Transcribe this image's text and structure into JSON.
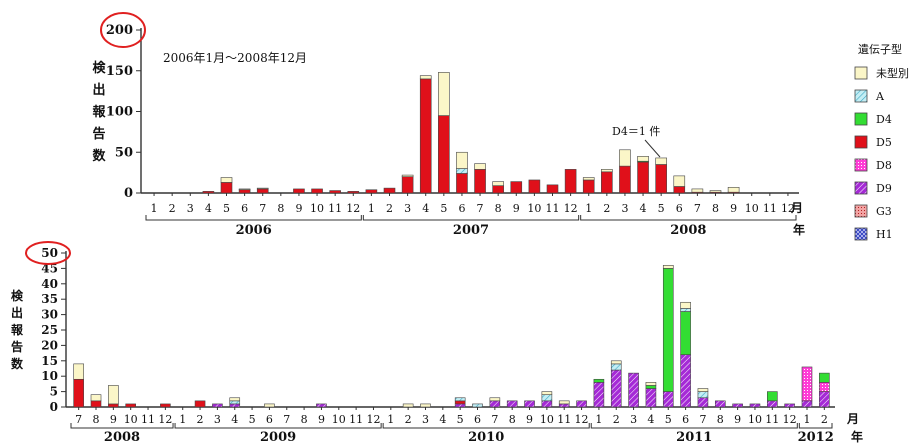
{
  "chart_data": [
    {
      "type": "bar",
      "stacked": true,
      "title": "",
      "annotation_text": "2006年1月～2008年12月",
      "callout_text": "D4＝1 件",
      "ylabel": "検出報告数",
      "xlabel": "月",
      "year_unit_label": "年",
      "ylim": [
        0,
        200
      ],
      "yticks": [
        "0",
        "50",
        "100",
        "150",
        "200"
      ],
      "grid": false,
      "legend_title": "遺伝子型",
      "legend_position": "right",
      "years": [
        {
          "label": "2006",
          "months": 12
        },
        {
          "label": "2007",
          "months": 12
        },
        {
          "label": "2008",
          "months": 12
        }
      ],
      "categories": [
        "1",
        "2",
        "3",
        "4",
        "5",
        "6",
        "7",
        "8",
        "9",
        "10",
        "11",
        "12",
        "1",
        "2",
        "3",
        "4",
        "5",
        "6",
        "7",
        "8",
        "9",
        "10",
        "11",
        "12",
        "1",
        "2",
        "3",
        "4",
        "5",
        "6",
        "7",
        "8",
        "9",
        "10",
        "11",
        "12"
      ],
      "series": [
        {
          "name": "未型別",
          "values": [
            0,
            0,
            0,
            0,
            6,
            1,
            1,
            0,
            0,
            0,
            0,
            0,
            0,
            0,
            2,
            4,
            53,
            20,
            7,
            5,
            0,
            0,
            0,
            0,
            3,
            3,
            20,
            6,
            8,
            13,
            4,
            2,
            6,
            0,
            0,
            0
          ]
        },
        {
          "name": "A",
          "values": [
            0,
            0,
            0,
            0,
            0,
            0,
            0,
            0,
            0,
            0,
            0,
            0,
            0,
            0,
            0,
            0,
            0,
            6,
            0,
            0,
            0,
            0,
            0,
            0,
            0,
            0,
            0,
            0,
            0,
            0,
            0,
            0,
            0,
            0,
            0,
            0
          ]
        },
        {
          "name": "D4",
          "values": [
            0,
            0,
            0,
            0,
            0,
            0,
            0,
            0,
            0,
            0,
            0,
            0,
            0,
            0,
            0,
            0,
            0,
            0,
            0,
            0,
            0,
            0,
            0,
            0,
            0,
            0,
            0,
            1,
            0,
            0,
            0,
            0,
            0,
            0,
            0,
            0
          ]
        },
        {
          "name": "D5",
          "values": [
            0,
            0,
            0,
            2,
            13,
            4,
            5,
            0,
            5,
            5,
            3,
            2,
            4,
            6,
            20,
            140,
            95,
            24,
            29,
            9,
            14,
            16,
            10,
            29,
            16,
            26,
            33,
            38,
            35,
            8,
            1,
            1,
            1,
            0,
            0,
            0
          ]
        },
        {
          "name": "D8",
          "values": [
            0,
            0,
            0,
            0,
            0,
            0,
            0,
            0,
            0,
            0,
            0,
            0,
            0,
            0,
            0,
            0,
            0,
            0,
            0,
            0,
            0,
            0,
            0,
            0,
            0,
            0,
            0,
            0,
            0,
            0,
            0,
            0,
            0,
            0,
            0,
            0
          ]
        },
        {
          "name": "D9",
          "values": [
            0,
            0,
            0,
            0,
            0,
            0,
            0,
            0,
            0,
            0,
            0,
            0,
            0,
            0,
            0,
            0,
            0,
            0,
            0,
            0,
            0,
            0,
            0,
            0,
            0,
            0,
            0,
            0,
            0,
            0,
            0,
            0,
            0,
            0,
            0,
            0
          ]
        },
        {
          "name": "G3",
          "values": [
            0,
            0,
            0,
            0,
            0,
            0,
            0,
            0,
            0,
            0,
            0,
            0,
            0,
            0,
            0,
            0,
            0,
            0,
            0,
            0,
            0,
            0,
            0,
            0,
            0,
            0,
            0,
            0,
            0,
            0,
            0,
            0,
            0,
            0,
            0,
            0
          ]
        },
        {
          "name": "H1",
          "values": [
            0,
            0,
            0,
            0,
            0,
            0,
            0,
            0,
            0,
            0,
            0,
            0,
            0,
            0,
            0,
            0,
            0,
            0,
            0,
            0,
            0,
            0,
            0,
            0,
            0,
            0,
            0,
            0,
            0,
            0,
            0,
            0,
            0,
            0,
            0,
            0
          ]
        }
      ]
    },
    {
      "type": "bar",
      "stacked": true,
      "title": "",
      "ylabel": "検出報告数",
      "xlabel": "月",
      "year_unit_label": "年",
      "ylim": [
        0,
        50
      ],
      "yticks": [
        "0",
        "5",
        "10",
        "15",
        "20",
        "25",
        "30",
        "35",
        "40",
        "45",
        "50"
      ],
      "grid": false,
      "years": [
        {
          "label": "2008",
          "months": 6
        },
        {
          "label": "2009",
          "months": 12
        },
        {
          "label": "2010",
          "months": 12
        },
        {
          "label": "2011",
          "months": 12
        },
        {
          "label": "2012",
          "months": 2
        }
      ],
      "categories": [
        "7",
        "8",
        "9",
        "10",
        "11",
        "12",
        "1",
        "2",
        "3",
        "4",
        "5",
        "6",
        "7",
        "8",
        "9",
        "10",
        "11",
        "12",
        "1",
        "2",
        "3",
        "4",
        "5",
        "6",
        "7",
        "8",
        "9",
        "10",
        "11",
        "12",
        "1",
        "2",
        "3",
        "4",
        "5",
        "6",
        "7",
        "8",
        "9",
        "10",
        "11",
        "12",
        "1",
        "2"
      ],
      "series": [
        {
          "name": "未型別",
          "values": [
            5,
            2,
            6,
            0,
            0,
            0,
            0,
            0,
            0,
            1,
            0,
            1,
            0,
            0,
            0,
            0,
            0,
            0,
            0,
            1,
            1,
            0,
            0,
            0,
            1,
            0,
            0,
            1,
            1,
            0,
            0,
            1,
            0,
            1,
            1,
            2,
            1,
            0,
            0,
            0,
            0,
            0,
            0,
            0
          ]
        },
        {
          "name": "A",
          "values": [
            0,
            0,
            0,
            0,
            0,
            0,
            0,
            0,
            0,
            1,
            0,
            0,
            0,
            0,
            0,
            0,
            0,
            0,
            0,
            0,
            0,
            0,
            1,
            1,
            0,
            0,
            0,
            2,
            0,
            0,
            0,
            2,
            0,
            0,
            0,
            1,
            2,
            0,
            0,
            0,
            0,
            0,
            0,
            0
          ]
        },
        {
          "name": "D4",
          "values": [
            0,
            0,
            0,
            0,
            0,
            0,
            0,
            0,
            0,
            0,
            0,
            0,
            0,
            0,
            0,
            0,
            0,
            0,
            0,
            0,
            0,
            0,
            0,
            0,
            0,
            0,
            0,
            0,
            0,
            0,
            1,
            0,
            0,
            1,
            40,
            14,
            0,
            0,
            0,
            0,
            3,
            0,
            0,
            3
          ]
        },
        {
          "name": "D5",
          "values": [
            9,
            2,
            1,
            1,
            0,
            1,
            0,
            2,
            0,
            0,
            0,
            0,
            0,
            0,
            0,
            0,
            0,
            0,
            0,
            0,
            0,
            0,
            1,
            0,
            0,
            0,
            0,
            0,
            0,
            0,
            0,
            0,
            0,
            0,
            0,
            0,
            0,
            0,
            0,
            0,
            0,
            0,
            0,
            0
          ]
        },
        {
          "name": "D8",
          "values": [
            0,
            0,
            0,
            0,
            0,
            0,
            0,
            0,
            0,
            0,
            0,
            0,
            0,
            0,
            0,
            0,
            0,
            0,
            0,
            0,
            0,
            0,
            0,
            0,
            0,
            0,
            0,
            0,
            0,
            0,
            0,
            0,
            0,
            0,
            0,
            0,
            0,
            0,
            0,
            0,
            0,
            0,
            11,
            3
          ]
        },
        {
          "name": "D9",
          "values": [
            0,
            0,
            0,
            0,
            0,
            0,
            0,
            0,
            1,
            1,
            0,
            0,
            0,
            0,
            1,
            0,
            0,
            0,
            0,
            0,
            0,
            0,
            1,
            0,
            2,
            2,
            2,
            2,
            1,
            2,
            8,
            12,
            11,
            6,
            5,
            17,
            3,
            2,
            1,
            1,
            2,
            1,
            2,
            5
          ]
        },
        {
          "name": "G3",
          "values": [
            0,
            0,
            0,
            0,
            0,
            0,
            0,
            0,
            0,
            0,
            0,
            0,
            0,
            0,
            0,
            0,
            0,
            0,
            0,
            0,
            0,
            0,
            0,
            0,
            0,
            0,
            0,
            0,
            0,
            0,
            0,
            0,
            0,
            0,
            0,
            0,
            0,
            0,
            0,
            0,
            0,
            0,
            0,
            0
          ]
        },
        {
          "name": "H1",
          "values": [
            0,
            0,
            0,
            0,
            0,
            0,
            0,
            0,
            0,
            0,
            0,
            0,
            0,
            0,
            0,
            0,
            0,
            0,
            0,
            0,
            0,
            0,
            0,
            0,
            0,
            0,
            0,
            0,
            0,
            0,
            0,
            0,
            0,
            0,
            0,
            0,
            0,
            0,
            0,
            0,
            0,
            0,
            0,
            0
          ]
        }
      ]
    }
  ],
  "colors": {
    "未型別": "#fbf6c8",
    "A": "#c4eef4",
    "D4": "#33dd33",
    "D5": "#e0101a",
    "D8": "#ff3cd6",
    "D9": "#a52ad6",
    "G3": "#f2a3a3",
    "H1": "#3344cc",
    "axis": "#333333",
    "highlight_circle": "#e02020"
  }
}
